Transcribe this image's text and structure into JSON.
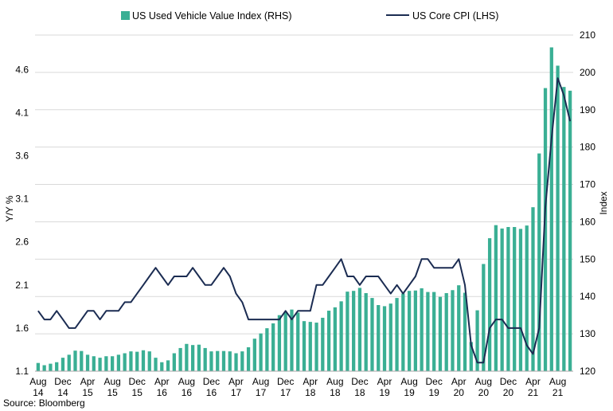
{
  "colors": {
    "bar": "#3aaf94",
    "line": "#1b2c52",
    "grid": "#d9d9d9",
    "axis": "#a6a6a6"
  },
  "source": "Source: Bloomberg",
  "chart_data": {
    "type": "bar+line",
    "legend_position": "top",
    "grid": true,
    "xlabel_rows": [
      [
        "Aug",
        "14"
      ],
      [
        "Dec",
        "14"
      ],
      [
        "Apr",
        "15"
      ],
      [
        "Aug",
        "15"
      ],
      [
        "Dec",
        "15"
      ],
      [
        "Apr",
        "16"
      ],
      [
        "Aug",
        "16"
      ],
      [
        "Dec",
        "16"
      ],
      [
        "Apr",
        "17"
      ],
      [
        "Aug",
        "17"
      ],
      [
        "Dec",
        "17"
      ],
      [
        "Apr",
        "18"
      ],
      [
        "Aug",
        "18"
      ],
      [
        "Dec",
        "18"
      ],
      [
        "Apr",
        "19"
      ],
      [
        "Aug",
        "19"
      ],
      [
        "Dec",
        "19"
      ],
      [
        "Apr",
        "20"
      ],
      [
        "Aug",
        "20"
      ],
      [
        "Dec",
        "20"
      ],
      [
        "Apr",
        "21"
      ],
      [
        "Aug",
        "21"
      ]
    ],
    "y_left": {
      "label": "Y/Y %",
      "range": [
        1.1,
        5.0
      ],
      "ticks": [
        "1.1",
        "1.6",
        "2.1",
        "2.6",
        "3.1",
        "3.6",
        "4.1",
        "4.6"
      ]
    },
    "y_right": {
      "label": "Index",
      "range": [
        120,
        210
      ],
      "ticks": [
        "120",
        "130",
        "140",
        "150",
        "160",
        "170",
        "180",
        "190",
        "200",
        "210"
      ]
    },
    "series": [
      {
        "name": "US Used Vehicle Value Index (RHS)",
        "type": "bar",
        "axis": "right",
        "values": [
          122.2,
          121.6,
          122.0,
          122.4,
          123.6,
          124.4,
          125.5,
          125.4,
          124.4,
          124.0,
          123.6,
          124.0,
          124.0,
          124.4,
          124.8,
          125.3,
          125.2,
          125.6,
          125.3,
          123.6,
          122.4,
          122.9,
          124.8,
          126.2,
          127.3,
          127.0,
          127.1,
          126.2,
          125.3,
          125.4,
          125.4,
          125.3,
          124.8,
          125.3,
          126.4,
          128.7,
          130.1,
          131.5,
          132.8,
          135.0,
          135.8,
          136.5,
          135.7,
          133.4,
          133.2,
          133.0,
          134.3,
          136.2,
          137.1,
          138.7,
          141.3,
          141.5,
          142.3,
          140.9,
          139.6,
          137.7,
          137.4,
          138.1,
          139.6,
          140.8,
          141.5,
          141.6,
          142.2,
          141.2,
          141.2,
          139.9,
          140.9,
          141.7,
          143.0,
          141.0,
          127.8,
          136.3,
          148.7,
          155.6,
          159.1,
          158.2,
          158.6,
          158.6,
          158.1,
          159.0,
          163.9,
          178.3,
          195.8,
          206.7,
          201.8,
          196.1,
          195.1
        ]
      },
      {
        "name": "US Core CPI (LHS)",
        "type": "line",
        "axis": "left",
        "values": [
          1.8,
          1.7,
          1.7,
          1.8,
          1.7,
          1.6,
          1.6,
          1.7,
          1.8,
          1.8,
          1.7,
          1.8,
          1.8,
          1.8,
          1.9,
          1.9,
          2.0,
          2.1,
          2.2,
          2.3,
          2.2,
          2.1,
          2.2,
          2.2,
          2.2,
          2.3,
          2.2,
          2.1,
          2.1,
          2.2,
          2.3,
          2.2,
          2.0,
          1.9,
          1.7,
          1.7,
          1.7,
          1.7,
          1.7,
          1.7,
          1.8,
          1.7,
          1.8,
          1.8,
          1.8,
          2.1,
          2.1,
          2.2,
          2.3,
          2.4,
          2.2,
          2.2,
          2.1,
          2.2,
          2.2,
          2.2,
          2.1,
          2.0,
          2.1,
          2.0,
          2.1,
          2.2,
          2.4,
          2.4,
          2.3,
          2.3,
          2.3,
          2.3,
          2.4,
          2.1,
          1.4,
          1.2,
          1.2,
          1.6,
          1.7,
          1.7,
          1.6,
          1.6,
          1.6,
          1.4,
          1.3,
          1.6,
          3.0,
          3.8,
          4.5,
          4.3,
          4.0
        ]
      }
    ]
  }
}
